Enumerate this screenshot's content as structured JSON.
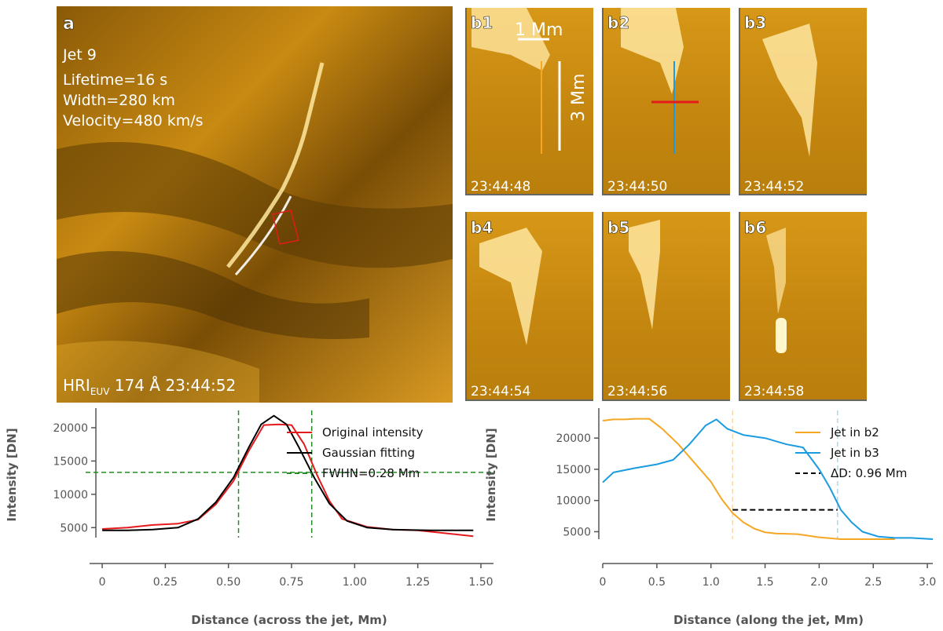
{
  "panel_a": {
    "label": "a",
    "jet_name": "Jet 9",
    "lifetime": "Lifetime=16 s",
    "width": "Width=280 km",
    "velocity": "Velocity=480 km/s",
    "instrument": "HRI",
    "instrument_sub": "EUV",
    "wavelength_time": " 174 Å 23:44:52"
  },
  "panels_b": [
    {
      "label": "b1",
      "time": "23:44:48"
    },
    {
      "label": "b2",
      "time": "23:44:50"
    },
    {
      "label": "b3",
      "time": "23:44:52"
    },
    {
      "label": "b4",
      "time": "23:44:54"
    },
    {
      "label": "b5",
      "time": "23:44:56"
    },
    {
      "label": "b6",
      "time": "23:44:58"
    }
  ],
  "scale_bars": {
    "small": "1 Mm",
    "large": "3 Mm"
  },
  "colors": {
    "solar": "#c98a12",
    "red": "#e41a1c",
    "orange": "#f5a623",
    "blue": "#1b9be0",
    "green": "#228b22",
    "axis": "#555555"
  },
  "chart_data": [
    {
      "type": "line",
      "title": "",
      "xlabel": "Distance (across the jet, Mm)",
      "ylabel": "Intensity [DN]",
      "xlim": [
        -0.05,
        1.55
      ],
      "ylim": [
        3500,
        22000
      ],
      "xticks": [
        0,
        0.25,
        0.5,
        0.75,
        1.0,
        1.25,
        1.5
      ],
      "xtick_labels": [
        "0",
        "0.25",
        "0.50",
        "0.75",
        "1.00",
        "1.25",
        "1.50"
      ],
      "yticks": [
        5000,
        10000,
        15000,
        20000
      ],
      "ytick_labels": [
        "5000",
        "10000",
        "15000",
        "20000"
      ],
      "series": [
        {
          "name": "Original intensity",
          "color": "#e41a1c",
          "x": [
            0,
            0.1,
            0.2,
            0.3,
            0.38,
            0.45,
            0.52,
            0.58,
            0.64,
            0.7,
            0.75,
            0.8,
            0.85,
            0.9,
            0.95,
            1.05,
            1.15,
            1.25,
            1.35,
            1.47
          ],
          "y": [
            4800,
            5000,
            5400,
            5600,
            6200,
            8500,
            12000,
            16500,
            20400,
            20500,
            20400,
            17500,
            13000,
            9000,
            6300,
            5100,
            4700,
            4600,
            4200,
            3700
          ]
        },
        {
          "name": "Gaussian fitting",
          "color": "#000000",
          "x": [
            0,
            0.1,
            0.2,
            0.3,
            0.38,
            0.45,
            0.52,
            0.58,
            0.63,
            0.68,
            0.73,
            0.78,
            0.84,
            0.9,
            0.97,
            1.05,
            1.15,
            1.3,
            1.47
          ],
          "y": [
            4600,
            4600,
            4700,
            5000,
            6300,
            8800,
            12500,
            17000,
            20500,
            21800,
            20500,
            17000,
            12500,
            8600,
            6000,
            5000,
            4700,
            4600,
            4600
          ]
        }
      ],
      "hline": {
        "y": 13300,
        "color": "#228b22"
      },
      "vlines": [
        {
          "x": 0.54,
          "color": "#228b22"
        },
        {
          "x": 0.83,
          "color": "#228b22"
        }
      ],
      "annotation": "FWHN=0.28 Mm",
      "legend": [
        "Original intensity",
        "Gaussian fitting",
        "FWHN=0.28 Mm"
      ]
    },
    {
      "type": "line",
      "title": "",
      "xlabel": "Distance (along the jet, Mm)",
      "ylabel": "Intensity [DN]",
      "xlim": [
        0,
        3.05
      ],
      "ylim": [
        3800,
        23800
      ],
      "xticks": [
        0,
        0.5,
        1.0,
        1.5,
        2.0,
        2.5,
        3.0
      ],
      "xtick_labels": [
        "0",
        "0.5",
        "1.0",
        "1.5",
        "2.0",
        "2.5",
        "3.0"
      ],
      "yticks": [
        5000,
        10000,
        15000,
        20000
      ],
      "ytick_labels": [
        "5000",
        "10000",
        "15000",
        "20000"
      ],
      "series": [
        {
          "name": "Jet in b2",
          "color": "#f5a623",
          "x": [
            0,
            0.1,
            0.2,
            0.3,
            0.43,
            0.55,
            0.7,
            0.85,
            1.0,
            1.1,
            1.2,
            1.3,
            1.4,
            1.5,
            1.6,
            1.8,
            2.0,
            2.2,
            2.5,
            2.7
          ],
          "y": [
            22800,
            23000,
            23000,
            23100,
            23100,
            21500,
            19000,
            16000,
            13000,
            10200,
            8000,
            6500,
            5500,
            4900,
            4700,
            4600,
            4100,
            3800,
            3800,
            3800
          ]
        },
        {
          "name": "Jet in b3",
          "color": "#1b9be0",
          "x": [
            0,
            0.1,
            0.3,
            0.5,
            0.65,
            0.8,
            0.95,
            1.05,
            1.15,
            1.3,
            1.5,
            1.7,
            1.85,
            2.0,
            2.1,
            2.2,
            2.3,
            2.4,
            2.55,
            2.7,
            2.85,
            3.05
          ],
          "y": [
            12900,
            14500,
            15200,
            15800,
            16500,
            19000,
            22000,
            23000,
            21500,
            20500,
            20000,
            19000,
            18500,
            15000,
            12000,
            8500,
            6500,
            5000,
            4200,
            4000,
            4000,
            3800
          ]
        }
      ],
      "vlines": [
        {
          "x": 1.2,
          "color": "#f8d8a8"
        },
        {
          "x": 2.17,
          "color": "#a8d8f0"
        }
      ],
      "delta_line": {
        "x1": 1.2,
        "x2": 2.17,
        "y": 8500,
        "color": "#000000"
      },
      "annotation": "ΔD: 0.96 Mm",
      "legend": [
        "Jet in b2",
        "Jet in b3",
        "ΔD: 0.96 Mm"
      ]
    }
  ]
}
